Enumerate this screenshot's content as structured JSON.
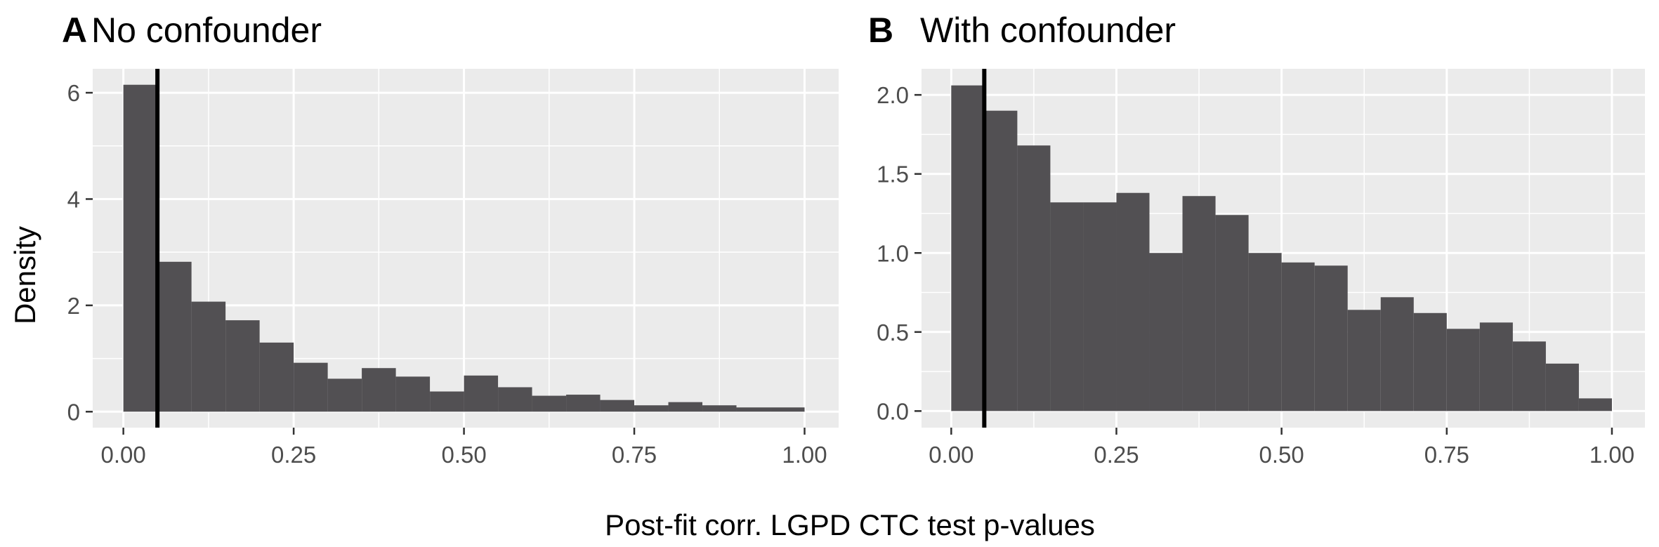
{
  "xlabel": "Post-fit corr. LGPD CTC test p-values",
  "ylabel": "Density",
  "chart_data": [
    {
      "type": "bar",
      "panel": "A",
      "title": "No confounder",
      "xlim": [
        -0.045,
        1.05
      ],
      "ylim": [
        -0.3,
        6.45
      ],
      "xticks": [
        0,
        0.25,
        0.5,
        0.75,
        1
      ],
      "xtick_labels": [
        "0.00",
        "0.25",
        "0.50",
        "0.75",
        "1.00"
      ],
      "yticks": [
        0,
        2,
        4,
        6
      ],
      "ytick_labels": [
        "0",
        "2",
        "4",
        "6"
      ],
      "bin_width": 0.05,
      "bin_starts": [
        0,
        0.05,
        0.1,
        0.15,
        0.2,
        0.25,
        0.3,
        0.35,
        0.4,
        0.45,
        0.5,
        0.55,
        0.6,
        0.65,
        0.7,
        0.75,
        0.8,
        0.85,
        0.9,
        0.95
      ],
      "values": [
        6.15,
        2.82,
        2.07,
        1.72,
        1.3,
        0.92,
        0.62,
        0.82,
        0.66,
        0.38,
        0.68,
        0.46,
        0.3,
        0.32,
        0.22,
        0.12,
        0.18,
        0.12,
        0.08,
        0.08
      ],
      "vline": 0.05,
      "bar_color": "#525053",
      "panel_bg": "#ebebeb",
      "grid": true
    },
    {
      "type": "bar",
      "panel": "B",
      "title": "With confounder",
      "xlim": [
        -0.045,
        1.05
      ],
      "ylim": [
        -0.105,
        2.165
      ],
      "xticks": [
        0,
        0.25,
        0.5,
        0.75,
        1
      ],
      "xtick_labels": [
        "0.00",
        "0.25",
        "0.50",
        "0.75",
        "1.00"
      ],
      "yticks": [
        0,
        0.5,
        1,
        1.5,
        2
      ],
      "ytick_labels": [
        "0.0",
        "0.5",
        "1.0",
        "1.5",
        "2.0"
      ],
      "bin_width": 0.05,
      "bin_starts": [
        0,
        0.05,
        0.1,
        0.15,
        0.2,
        0.25,
        0.3,
        0.35,
        0.4,
        0.45,
        0.5,
        0.55,
        0.6,
        0.65,
        0.7,
        0.75,
        0.8,
        0.85,
        0.9,
        0.95
      ],
      "values": [
        2.06,
        1.9,
        1.68,
        1.32,
        1.32,
        1.38,
        1.0,
        1.36,
        1.24,
        1.0,
        0.94,
        0.92,
        0.64,
        0.72,
        0.62,
        0.52,
        0.56,
        0.44,
        0.3,
        0.08
      ],
      "vline": 0.05,
      "bar_color": "#525053",
      "panel_bg": "#ebebeb",
      "grid": true
    }
  ]
}
